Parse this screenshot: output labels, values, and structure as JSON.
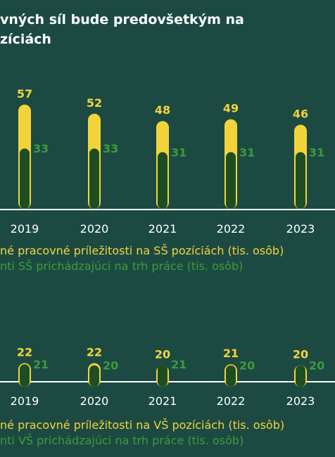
{
  "title_line1": "vných síl bude predovšetkým na",
  "title_line2": "zíciách",
  "colors": {
    "background": "#1c4a43",
    "demand": "#f2d43a",
    "supply": "#1f4d22",
    "supply_label": "#3f9a3a",
    "axis": "#ffffff"
  },
  "chart_data": [
    {
      "type": "bar",
      "categories": [
        "2019",
        "2020",
        "2021",
        "2022",
        "2023"
      ],
      "series": [
        {
          "name": "né pracovné príležitosti na SŠ pozíciách (tis. osôb)",
          "values": [
            57,
            52,
            48,
            49,
            46
          ]
        },
        {
          "name": "nti SŠ prichádzajúci na trh práce (tis. osôb)",
          "values": [
            33,
            33,
            31,
            31,
            31
          ]
        }
      ],
      "legend_position": "bottom"
    },
    {
      "type": "bar",
      "categories": [
        "2019",
        "2020",
        "2021",
        "2022",
        "2023"
      ],
      "series": [
        {
          "name": "né pracovné príležitosti na VŠ pozíciách (tis. osôb)",
          "values": [
            22,
            22,
            20,
            21,
            20
          ]
        },
        {
          "name": "nti VŠ prichádzajúci na trh práce (tis. osôb)",
          "values": [
            21,
            20,
            21,
            20,
            20
          ]
        }
      ],
      "legend_position": "bottom"
    }
  ]
}
